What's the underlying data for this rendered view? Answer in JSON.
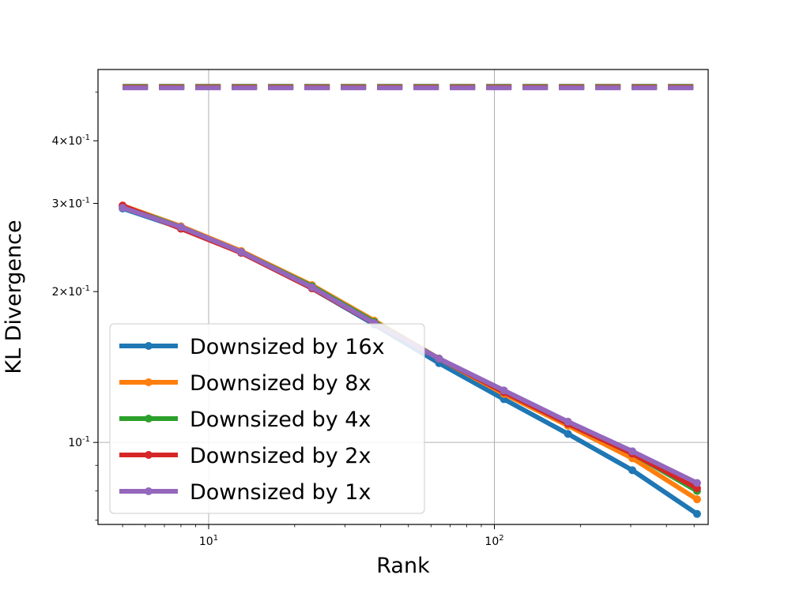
{
  "chart_data": {
    "type": "line",
    "title": "",
    "xlabel": "Rank",
    "ylabel": "KL Divergence",
    "xscale": "log",
    "yscale": "log",
    "xlim": [
      4.1,
      560
    ],
    "ylim": [
      0.0686,
      0.555
    ],
    "grid": true,
    "legend_position": "lower-left",
    "x_tick_labels": [
      "10^1",
      "10^2"
    ],
    "y_tick_labels": [
      "10^-1",
      "2×10^-1",
      "3×10^-1",
      "4×10^-1"
    ],
    "x": [
      5,
      8,
      13,
      23,
      38,
      64,
      108,
      181,
      304,
      512
    ],
    "series": [
      {
        "name": "Downsized by 16x",
        "color": "#1f77b4",
        "values": [
          0.293,
          0.268,
          0.239,
          0.203,
          0.172,
          0.144,
          0.122,
          0.104,
          0.088,
          0.072
        ],
        "baseline": 0.514
      },
      {
        "name": "Downsized by 8x",
        "color": "#ff7f0e",
        "values": [
          0.297,
          0.27,
          0.241,
          0.206,
          0.175,
          0.147,
          0.125,
          0.108,
          0.093,
          0.077
        ],
        "baseline": 0.513
      },
      {
        "name": "Downsized by 4x",
        "color": "#2ca02c",
        "values": [
          0.296,
          0.269,
          0.24,
          0.205,
          0.174,
          0.147,
          0.126,
          0.109,
          0.095,
          0.08
        ],
        "baseline": 0.512
      },
      {
        "name": "Downsized by 2x",
        "color": "#d62728",
        "values": [
          0.297,
          0.267,
          0.239,
          0.203,
          0.173,
          0.147,
          0.126,
          0.109,
          0.095,
          0.081
        ],
        "baseline": 0.511
      },
      {
        "name": "Downsized by 1x",
        "color": "#9467bd",
        "values": [
          0.294,
          0.269,
          0.24,
          0.204,
          0.173,
          0.147,
          0.127,
          0.11,
          0.096,
          0.083
        ],
        "baseline": 0.51
      }
    ]
  }
}
